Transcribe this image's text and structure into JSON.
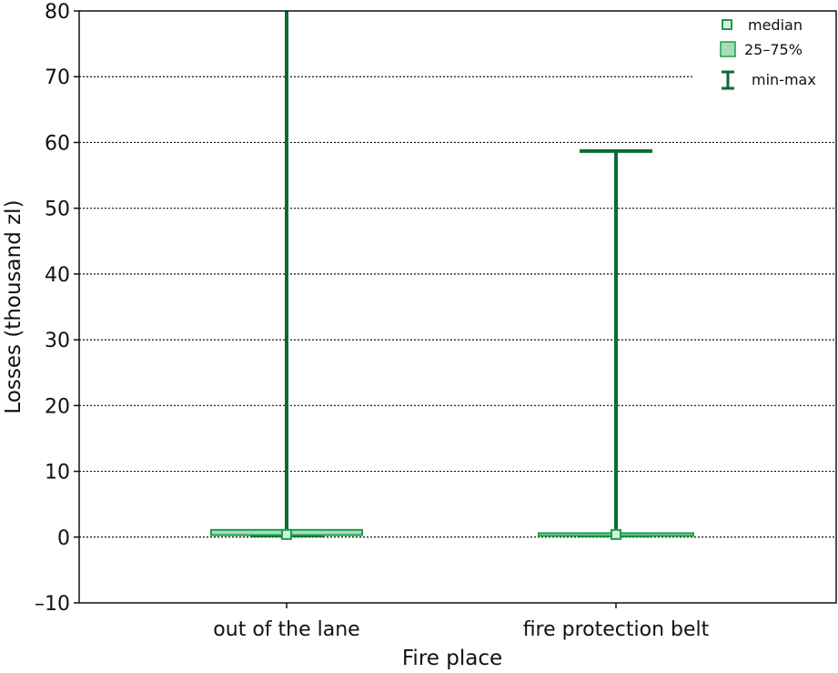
{
  "chart_data": {
    "type": "boxplot",
    "title": "",
    "xlabel": "Fire place",
    "ylabel": "Losses (thousand zl)",
    "ylim": [
      -10,
      80
    ],
    "yticks": [
      -10,
      0,
      10,
      20,
      30,
      40,
      50,
      60,
      70,
      80
    ],
    "ytick_labels": [
      "–10",
      "0",
      "10",
      "20",
      "30",
      "40",
      "50",
      "60",
      "70",
      "80"
    ],
    "grid": "horizontal dotted",
    "legend_position": "top-right",
    "legend": [
      "median",
      "25–75%",
      "min-max"
    ],
    "categories": [
      "out of the lane",
      "fire protection belt"
    ],
    "series": [
      {
        "category": "out of the lane",
        "min": 0.1,
        "q1": 0.3,
        "median": 0.4,
        "q3": 1.1,
        "max": 80
      },
      {
        "category": "fire protection belt",
        "min": 0.1,
        "q1": 0.2,
        "median": 0.4,
        "q3": 0.6,
        "max": 58.7
      }
    ],
    "colors": {
      "whisker": "#0b6b35",
      "box_fill": "#a8dcb8",
      "box_stroke": "#1a9e4e",
      "median_fill": "#d6efdd"
    }
  }
}
